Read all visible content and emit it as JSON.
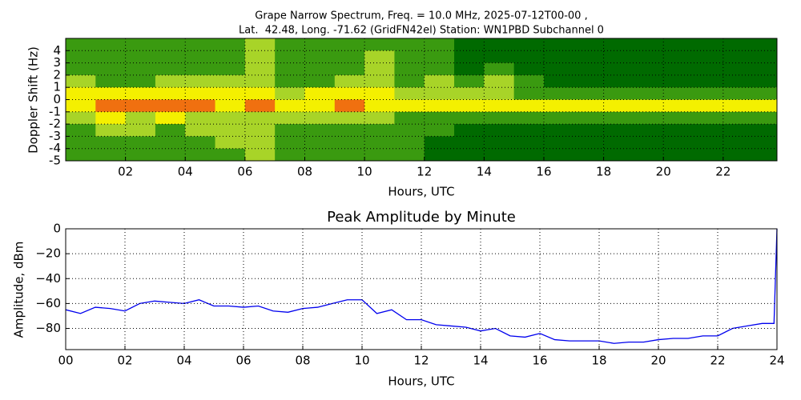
{
  "chart_data": [
    {
      "type": "heatmap",
      "title": "Grape Narrow Spectrum, Freq. = 10.0 MHz, 2025-07-12T00-00 ,",
      "subtitle": "Lat.  42.48, Long. -71.62 (GridFN42el) Station: WN1PBD Subchannel 0",
      "x_label": "Hours, UTC",
      "y_label": "Doppler Shift (Hz)",
      "x": [
        0.5,
        1.5,
        2.5,
        3.5,
        4.5,
        5.5,
        6.5,
        7.5,
        8.5,
        9.5,
        10.5,
        11.5,
        12.5,
        13.5,
        14.5,
        15.5,
        16.5,
        17.5,
        18.5,
        19.5,
        20.5,
        21.5,
        22.5,
        23.5
      ],
      "y": [
        4.5,
        3.5,
        2.5,
        1.5,
        0.5,
        -0.5,
        -1.5,
        -2.5,
        -3.5,
        -4.5
      ],
      "values": [
        [
          1,
          1,
          1,
          1,
          1,
          1,
          2,
          1,
          1,
          1,
          1,
          1,
          1,
          0,
          0,
          0,
          0,
          0,
          0,
          0,
          0,
          0,
          0,
          0
        ],
        [
          1,
          1,
          1,
          1,
          1,
          1,
          2,
          1,
          1,
          1,
          2,
          1,
          1,
          0,
          0,
          0,
          0,
          0,
          0,
          0,
          0,
          0,
          0,
          0
        ],
        [
          1,
          1,
          1,
          1,
          1,
          1,
          2,
          1,
          1,
          1,
          2,
          1,
          1,
          0,
          1,
          0,
          0,
          0,
          0,
          0,
          0,
          0,
          0,
          0
        ],
        [
          2,
          1,
          1,
          2,
          2,
          2,
          2,
          1,
          1,
          2,
          2,
          1,
          2,
          1,
          2,
          1,
          0,
          0,
          0,
          0,
          0,
          0,
          0,
          0
        ],
        [
          3,
          3,
          3,
          3,
          3,
          3,
          3,
          2,
          3,
          3,
          3,
          2,
          2,
          2,
          2,
          1,
          1,
          1,
          1,
          1,
          1,
          1,
          1,
          1
        ],
        [
          3,
          4,
          4,
          4,
          4,
          3,
          4,
          3,
          3,
          4,
          3,
          3,
          3,
          3,
          3,
          3,
          3,
          3,
          3,
          3,
          3,
          3,
          3,
          3
        ],
        [
          2,
          3,
          2,
          3,
          2,
          2,
          2,
          2,
          2,
          2,
          2,
          1,
          1,
          1,
          1,
          1,
          1,
          1,
          1,
          1,
          1,
          1,
          1,
          1
        ],
        [
          1,
          2,
          2,
          1,
          2,
          2,
          2,
          1,
          1,
          1,
          1,
          1,
          1,
          0,
          0,
          0,
          0,
          0,
          0,
          0,
          0,
          0,
          0,
          0
        ],
        [
          1,
          1,
          1,
          1,
          1,
          2,
          2,
          1,
          1,
          1,
          1,
          1,
          0,
          0,
          0,
          0,
          0,
          0,
          0,
          0,
          0,
          0,
          0,
          0
        ],
        [
          1,
          1,
          1,
          1,
          1,
          1,
          2,
          1,
          1,
          1,
          1,
          1,
          0,
          0,
          0,
          0,
          0,
          0,
          0,
          0,
          0,
          0,
          0,
          0
        ]
      ],
      "colors": [
        "#006a00",
        "#3a9a10",
        "#a8d428",
        "#f4f000",
        "#f07010"
      ],
      "xlim": [
        0,
        23.8
      ],
      "ylim": [
        -5,
        5
      ],
      "xticks": [
        {
          "value": 2,
          "label": "02"
        },
        {
          "value": 4,
          "label": "04"
        },
        {
          "value": 6,
          "label": "06"
        },
        {
          "value": 8,
          "label": "08"
        },
        {
          "value": 10,
          "label": "10"
        },
        {
          "value": 12,
          "label": "12"
        },
        {
          "value": 14,
          "label": "14"
        },
        {
          "value": 16,
          "label": "16"
        },
        {
          "value": 18,
          "label": "18"
        },
        {
          "value": 20,
          "label": "20"
        },
        {
          "value": 22,
          "label": "22"
        }
      ],
      "yticks": [
        -5,
        -4,
        -3,
        -2,
        -1,
        0,
        1,
        2,
        3,
        4
      ],
      "grid": true
    },
    {
      "type": "line",
      "title": "Peak Amplitude by Minute",
      "x_label": "Hours, UTC",
      "y_label": "Amplitude, dBm",
      "x": [
        0,
        0.5,
        1,
        1.5,
        2,
        2.5,
        3,
        3.5,
        4,
        4.5,
        5,
        5.5,
        6,
        6.5,
        7,
        7.5,
        8,
        8.5,
        9,
        9.5,
        10,
        10.5,
        11,
        11.5,
        12,
        12.5,
        13,
        13.5,
        14,
        14.5,
        15,
        15.5,
        16,
        16.5,
        17,
        17.5,
        18,
        18.5,
        19,
        19.5,
        20,
        20.5,
        21,
        21.5,
        22,
        22.5,
        23,
        23.5,
        23.9,
        24
      ],
      "values": [
        -65,
        -68,
        -63,
        -64,
        -66,
        -60,
        -58,
        -59,
        -60,
        -57,
        -62,
        -62,
        -63,
        -62,
        -66,
        -67,
        -64,
        -63,
        -60,
        -57,
        -57,
        -68,
        -65,
        -73,
        -73,
        -77,
        -78,
        -79,
        -82,
        -80,
        -86,
        -87,
        -84,
        -89,
        -90,
        -90,
        -90,
        -92,
        -91,
        -91,
        -89,
        -88,
        -88,
        -86,
        -86,
        -80,
        -78,
        -76,
        -76,
        0
      ],
      "color": "#0000ee",
      "xlim": [
        0,
        24
      ],
      "ylim": [
        -97,
        0
      ],
      "xticks": [
        {
          "value": 0,
          "label": "00"
        },
        {
          "value": 2,
          "label": "02"
        },
        {
          "value": 4,
          "label": "04"
        },
        {
          "value": 6,
          "label": "06"
        },
        {
          "value": 8,
          "label": "08"
        },
        {
          "value": 10,
          "label": "10"
        },
        {
          "value": 12,
          "label": "12"
        },
        {
          "value": 14,
          "label": "14"
        },
        {
          "value": 16,
          "label": "16"
        },
        {
          "value": 18,
          "label": "18"
        },
        {
          "value": 20,
          "label": "20"
        },
        {
          "value": 22,
          "label": "22"
        },
        {
          "value": 24,
          "label": "24"
        }
      ],
      "yticks": [
        0,
        {
          "value": -20,
          "label": "−20"
        },
        {
          "value": -40,
          "label": "−40"
        },
        {
          "value": -60,
          "label": "−60"
        },
        {
          "value": -80,
          "label": "−80"
        }
      ],
      "grid": true
    }
  ]
}
